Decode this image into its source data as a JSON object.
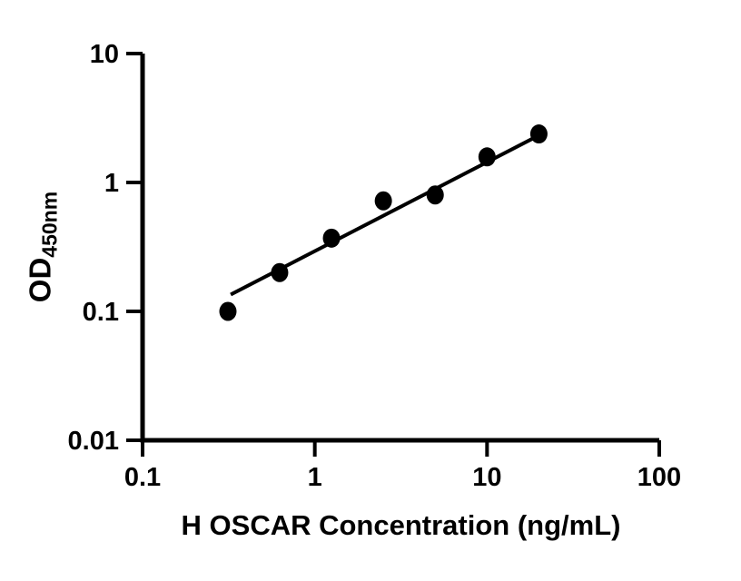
{
  "figure": {
    "background_color": "#ffffff",
    "foreground_color": "#000000"
  },
  "chart_data": {
    "type": "scatter",
    "title": "",
    "xlabel": "H OSCAR Concentration (ng/mL)",
    "ylabel_main": "OD",
    "ylabel_sub": "450nm",
    "x_scale": "log",
    "y_scale": "log",
    "xlim": [
      0.1,
      100
    ],
    "ylim": [
      0.01,
      10
    ],
    "x_ticks": [
      0.1,
      1,
      10,
      100
    ],
    "x_tick_labels": [
      "0.1",
      "1",
      "10",
      "100"
    ],
    "y_ticks": [
      10,
      1,
      0.1,
      0.01
    ],
    "y_tick_labels": [
      "10",
      "1",
      "0.1",
      "0.01"
    ],
    "grid": false,
    "legend": null,
    "marker_color": "#000000",
    "line_color": "#000000",
    "series": [
      {
        "name": "fit-line",
        "type": "line",
        "color": "#000000",
        "points": [
          {
            "x": 0.325,
            "y": 0.135
          },
          {
            "x": 20.5,
            "y": 2.36
          }
        ]
      },
      {
        "name": "H OSCAR standard points",
        "type": "scatter",
        "marker": "filled-circle",
        "color": "#000000",
        "points": [
          {
            "x": 0.313,
            "y": 0.1
          },
          {
            "x": 0.625,
            "y": 0.2
          },
          {
            "x": 1.25,
            "y": 0.37
          },
          {
            "x": 2.5,
            "y": 0.72
          },
          {
            "x": 5,
            "y": 0.8
          },
          {
            "x": 10,
            "y": 1.58
          },
          {
            "x": 20,
            "y": 2.38
          }
        ]
      }
    ]
  }
}
